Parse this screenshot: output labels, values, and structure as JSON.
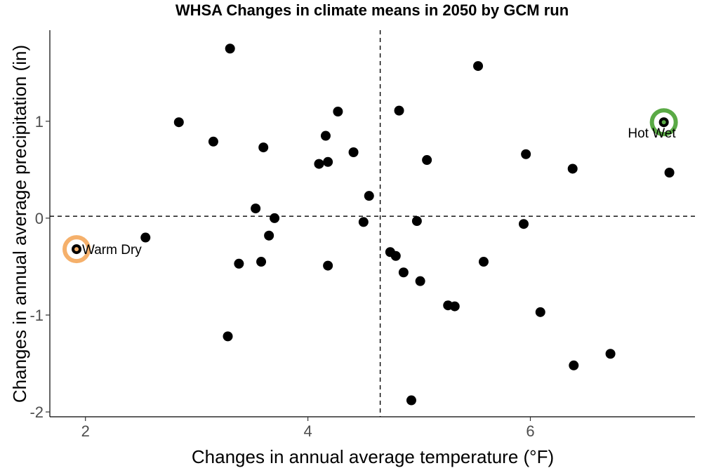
{
  "chart_data": {
    "type": "scatter",
    "title": "WHSA Changes in climate means in 2050 by GCM run",
    "xlabel": "Changes in annual average temperature (°F)",
    "ylabel": "Changes in annual average precipitation (in)",
    "xlim": [
      1.68,
      7.48
    ],
    "ylim": [
      -2.05,
      1.94
    ],
    "x_ticks": [
      2,
      4,
      6
    ],
    "y_ticks": [
      -2,
      -1,
      0,
      1
    ],
    "x_tick_labels": [
      "2",
      "4",
      "6"
    ],
    "y_tick_labels": [
      "-2",
      "-1",
      "0",
      "1"
    ],
    "reference_lines": {
      "x": 4.65,
      "y": 0.02
    },
    "grid": false,
    "point_color": "#000000",
    "points": [
      {
        "x": 3.3,
        "y": 1.75
      },
      {
        "x": 5.53,
        "y": 1.57
      },
      {
        "x": 4.27,
        "y": 1.1
      },
      {
        "x": 4.82,
        "y": 1.11
      },
      {
        "x": 2.84,
        "y": 0.99
      },
      {
        "x": 7.2,
        "y": 0.99
      },
      {
        "x": 4.16,
        "y": 0.85
      },
      {
        "x": 3.15,
        "y": 0.79
      },
      {
        "x": 3.6,
        "y": 0.73
      },
      {
        "x": 4.41,
        "y": 0.68
      },
      {
        "x": 5.96,
        "y": 0.66
      },
      {
        "x": 5.07,
        "y": 0.6
      },
      {
        "x": 4.18,
        "y": 0.58
      },
      {
        "x": 4.1,
        "y": 0.56
      },
      {
        "x": 6.38,
        "y": 0.51
      },
      {
        "x": 7.25,
        "y": 0.47
      },
      {
        "x": 4.55,
        "y": 0.23
      },
      {
        "x": 3.53,
        "y": 0.1
      },
      {
        "x": 3.7,
        "y": 0.0
      },
      {
        "x": 4.5,
        "y": -0.04
      },
      {
        "x": 4.98,
        "y": -0.03
      },
      {
        "x": 5.94,
        "y": -0.06
      },
      {
        "x": 3.65,
        "y": -0.18
      },
      {
        "x": 2.54,
        "y": -0.2
      },
      {
        "x": 1.92,
        "y": -0.32
      },
      {
        "x": 4.74,
        "y": -0.35
      },
      {
        "x": 4.79,
        "y": -0.39
      },
      {
        "x": 3.38,
        "y": -0.47
      },
      {
        "x": 3.58,
        "y": -0.45
      },
      {
        "x": 4.18,
        "y": -0.49
      },
      {
        "x": 5.58,
        "y": -0.45
      },
      {
        "x": 4.86,
        "y": -0.56
      },
      {
        "x": 5.01,
        "y": -0.65
      },
      {
        "x": 5.26,
        "y": -0.9
      },
      {
        "x": 5.32,
        "y": -0.91
      },
      {
        "x": 6.09,
        "y": -0.97
      },
      {
        "x": 3.28,
        "y": -1.22
      },
      {
        "x": 6.72,
        "y": -1.4
      },
      {
        "x": 6.39,
        "y": -1.52
      },
      {
        "x": 4.93,
        "y": -1.88
      }
    ],
    "highlights": [
      {
        "label": "Warm Dry",
        "x": 1.92,
        "y": -0.32,
        "color": "#f5b06b",
        "label_side": "right"
      },
      {
        "label": "Hot Wet",
        "x": 7.2,
        "y": 0.99,
        "color": "#5aaa45",
        "label_side": "below-left"
      }
    ]
  }
}
